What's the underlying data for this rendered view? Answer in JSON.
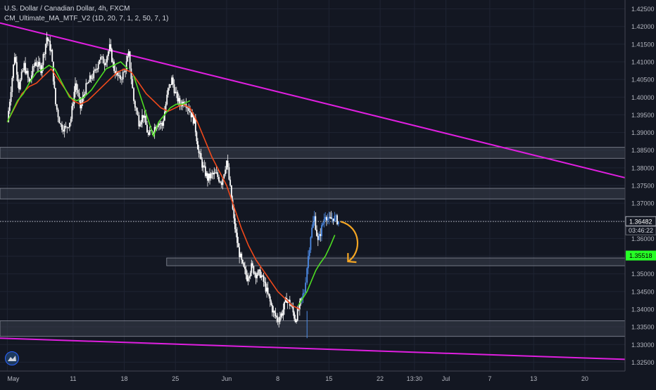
{
  "header": {
    "title": "U.S. Dollar / Canadian Dollar, 4h, FXCM",
    "indicator": "CM_Ultimate_MA_MTF_V2 (1D, 20, 7, 1, 2, 50, 7, 1)"
  },
  "colors": {
    "background": "#131722",
    "grid": "#1f2433",
    "candle": "#ffffff",
    "candle_up": "#4d8be6",
    "ma_long": "#f0491b",
    "ma_short": "#4ddc22",
    "trendline": "#e01fe0",
    "zone": "#3a3f4c",
    "arrow": "#f5a623",
    "label_green": "#26ff26"
  },
  "chart_data": {
    "type": "line",
    "title": "U.S. Dollar / Canadian Dollar, 4h, FXCM",
    "ylim": [
      1.3225,
      1.4275
    ],
    "y_ticks": [
      "1.42500",
      "1.42000",
      "1.41500",
      "1.41000",
      "1.40500",
      "1.40000",
      "1.39500",
      "1.39000",
      "1.38500",
      "1.38000",
      "1.37500",
      "1.37000",
      "1.36500",
      "1.36000",
      "1.35500",
      "1.35000",
      "1.34500",
      "1.34000",
      "1.33500",
      "1.33000",
      "1.32500"
    ],
    "x_ticks": [
      {
        "label": "May",
        "d": 0
      },
      {
        "label": "11",
        "d": 9
      },
      {
        "label": "18",
        "d": 16
      },
      {
        "label": "25",
        "d": 23
      },
      {
        "label": "Jun",
        "d": 30
      },
      {
        "label": "8",
        "d": 37
      },
      {
        "label": "15",
        "d": 44
      },
      {
        "label": "22",
        "d": 51
      },
      {
        "label": "13:30",
        "d": 55.7
      },
      {
        "label": "Jul",
        "d": 60
      },
      {
        "label": "7",
        "d": 66
      },
      {
        "label": "13",
        "d": 72
      },
      {
        "label": "20",
        "d": 79
      }
    ],
    "price_path": [
      [
        0,
        1.393
      ],
      [
        1,
        1.412
      ],
      [
        1.6,
        1.403
      ],
      [
        2.3,
        1.409
      ],
      [
        3,
        1.404
      ],
      [
        3.8,
        1.41
      ],
      [
        4.6,
        1.408
      ],
      [
        5.4,
        1.417
      ],
      [
        6,
        1.413
      ],
      [
        6.6,
        1.398
      ],
      [
        7.3,
        1.392
      ],
      [
        8,
        1.391
      ],
      [
        8.7,
        1.394
      ],
      [
        9.3,
        1.404
      ],
      [
        10,
        1.397
      ],
      [
        10.6,
        1.402
      ],
      [
        11.3,
        1.405
      ],
      [
        12,
        1.407
      ],
      [
        12.6,
        1.411
      ],
      [
        13.3,
        1.41
      ],
      [
        14,
        1.414
      ],
      [
        14.6,
        1.408
      ],
      [
        15.3,
        1.405
      ],
      [
        16,
        1.407
      ],
      [
        16.6,
        1.412
      ],
      [
        17.3,
        1.399
      ],
      [
        18,
        1.393
      ],
      [
        18.6,
        1.395
      ],
      [
        19.3,
        1.389
      ],
      [
        20,
        1.391
      ],
      [
        20.6,
        1.393
      ],
      [
        21.2,
        1.392
      ],
      [
        22,
        1.402
      ],
      [
        22.5,
        1.405
      ],
      [
        23,
        1.401
      ],
      [
        23.6,
        1.398
      ],
      [
        24.3,
        1.399
      ],
      [
        25,
        1.396
      ],
      [
        25.6,
        1.393
      ],
      [
        26.2,
        1.384
      ],
      [
        26.8,
        1.38
      ],
      [
        27.4,
        1.377
      ],
      [
        28,
        1.378
      ],
      [
        28.6,
        1.378
      ],
      [
        29.3,
        1.376
      ],
      [
        30,
        1.382
      ],
      [
        30.5,
        1.374
      ],
      [
        31,
        1.365
      ],
      [
        31.6,
        1.357
      ],
      [
        32.2,
        1.352
      ],
      [
        32.8,
        1.349
      ],
      [
        33.4,
        1.352
      ],
      [
        34,
        1.35
      ],
      [
        34.6,
        1.35
      ],
      [
        35.2,
        1.347
      ],
      [
        35.8,
        1.343
      ],
      [
        36.4,
        1.339
      ],
      [
        37,
        1.337
      ],
      [
        37.6,
        1.339
      ],
      [
        38.2,
        1.343
      ],
      [
        38.8,
        1.341
      ],
      [
        39.4,
        1.337
      ],
      [
        40,
        1.341
      ],
      [
        40.6,
        1.345
      ],
      [
        41,
        1.352
      ],
      [
        41.5,
        1.361
      ],
      [
        42,
        1.366
      ],
      [
        42.5,
        1.359
      ],
      [
        43,
        1.363
      ],
      [
        43.5,
        1.367
      ],
      [
        44,
        1.365
      ],
      [
        44.6,
        1.366
      ],
      [
        45.3,
        1.3648
      ]
    ],
    "series": [
      {
        "values": [
          [
            0,
            1.393
          ],
          [
            1,
            1.397
          ],
          [
            2,
            1.401
          ],
          [
            3,
            1.403
          ],
          [
            4,
            1.404
          ],
          [
            5,
            1.406
          ],
          [
            6,
            1.408
          ],
          [
            7,
            1.405
          ],
          [
            8,
            1.402
          ],
          [
            9,
            1.399
          ],
          [
            10,
            1.398
          ],
          [
            11,
            1.399
          ],
          [
            12,
            1.401
          ],
          [
            13,
            1.403
          ],
          [
            14,
            1.405
          ],
          [
            15,
            1.407
          ],
          [
            16,
            1.408
          ],
          [
            17,
            1.407
          ],
          [
            18,
            1.404
          ],
          [
            19,
            1.401
          ],
          [
            20,
            1.399
          ],
          [
            21,
            1.397
          ],
          [
            22,
            1.396
          ],
          [
            23,
            1.397
          ],
          [
            24,
            1.398
          ],
          [
            25,
            1.397
          ],
          [
            26,
            1.393
          ],
          [
            27,
            1.388
          ],
          [
            28,
            1.383
          ],
          [
            29,
            1.379
          ],
          [
            30,
            1.375
          ],
          [
            31,
            1.369
          ],
          [
            32,
            1.363
          ],
          [
            33,
            1.358
          ],
          [
            34,
            1.354
          ],
          [
            35,
            1.351
          ],
          [
            36,
            1.348
          ],
          [
            37,
            1.345
          ],
          [
            38,
            1.343
          ],
          [
            39,
            1.341
          ],
          [
            40,
            1.34
          ]
        ]
      },
      {
        "values": [
          [
            0,
            1.393
          ],
          [
            1.4,
            1.399
          ],
          [
            2.2,
            1.401
          ],
          [
            3,
            1.404
          ],
          [
            4,
            1.407
          ],
          [
            5,
            1.408
          ],
          [
            5.7,
            1.409
          ],
          [
            6.5,
            1.408
          ],
          [
            7.5,
            1.404
          ],
          [
            8.5,
            1.4
          ],
          [
            9.5,
            1.399
          ],
          [
            10.5,
            1.4
          ],
          [
            11.5,
            1.402
          ],
          [
            12.5,
            1.405
          ],
          [
            13.5,
            1.408
          ],
          [
            14.5,
            1.409
          ],
          [
            15.5,
            1.41
          ],
          [
            16.5,
            1.408
          ],
          [
            17.3,
            1.406
          ],
          [
            20,
            1.389
          ],
          [
            20.7,
            1.393
          ],
          [
            21.5,
            1.395
          ],
          [
            22.3,
            1.397
          ],
          [
            23.1,
            1.398
          ],
          [
            24,
            1.398
          ],
          [
            25,
            1.399
          ],
          [
            39.8,
            1.341
          ],
          [
            40.4,
            1.343
          ],
          [
            41,
            1.345
          ],
          [
            41.6,
            1.348
          ],
          [
            42.2,
            1.351
          ],
          [
            42.8,
            1.353
          ],
          [
            43.5,
            1.355
          ],
          [
            44.2,
            1.358
          ],
          [
            44.8,
            1.361
          ]
        ]
      }
    ],
    "trendlines": [
      {
        "from": [
          -1,
          1.421
        ],
        "to": [
          84.5,
          1.3772
        ]
      },
      {
        "from": [
          -1,
          1.3318
        ],
        "to": [
          84.5,
          1.3258
        ]
      }
    ],
    "zones": [
      [
        -1,
        84.5,
        1.3827,
        1.3858
      ],
      [
        -1,
        84.5,
        1.3712,
        1.3742
      ],
      [
        21.8,
        84.5,
        1.3523,
        1.3545
      ],
      [
        -1,
        84.5,
        1.3323,
        1.3367
      ]
    ],
    "price_label": "1.36482",
    "countdown_label": "03:46:22",
    "ma_label": "1.35518",
    "current_price": 1.36482,
    "ma_price": 1.35518
  }
}
